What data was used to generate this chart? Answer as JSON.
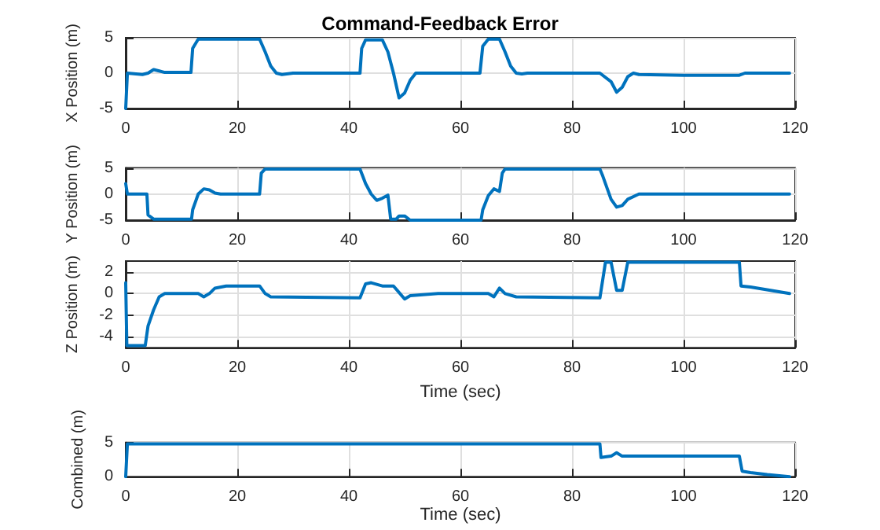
{
  "chart_data": [
    {
      "type": "line",
      "title": "Command-Feedback Error",
      "ylabel": "X Position (m)",
      "xlim": [
        0,
        120
      ],
      "xticks": [
        0,
        20,
        40,
        60,
        80,
        100,
        120
      ],
      "ylim": [
        -5,
        5
      ],
      "yticks": [
        -5,
        0,
        5
      ],
      "grid": true,
      "color": "#0072bd",
      "x": [
        0,
        0.3,
        3,
        4,
        5,
        6,
        7,
        11.7,
        12,
        13,
        24,
        25,
        26,
        27,
        28,
        30,
        42,
        42.3,
        43,
        46,
        47,
        48,
        49,
        50,
        51,
        52,
        63.5,
        64,
        65,
        67,
        68,
        69,
        70,
        71,
        72,
        85,
        87,
        88,
        89,
        90,
        91,
        92,
        100,
        110,
        111,
        119
      ],
      "values": [
        -5,
        0,
        -0.2,
        0,
        0.5,
        0.3,
        0.1,
        0.1,
        3.5,
        4.8,
        4.8,
        3,
        1,
        0,
        -0.2,
        0,
        0,
        3.5,
        4.7,
        4.7,
        3,
        0,
        -3.5,
        -2.8,
        -1,
        0,
        0,
        3.8,
        4.8,
        4.8,
        3,
        1,
        0,
        -0.1,
        0,
        0,
        -1.2,
        -2.7,
        -2,
        -0.5,
        0,
        -0.2,
        -0.3,
        -0.3,
        0,
        0
      ]
    },
    {
      "type": "line",
      "ylabel": "Y Position (m)",
      "xlim": [
        0,
        120
      ],
      "xticks": [
        0,
        20,
        40,
        60,
        80,
        100,
        120
      ],
      "ylim": [
        -5,
        5
      ],
      "yticks": [
        -5,
        0,
        5
      ],
      "grid": true,
      "color": "#0072bd",
      "x": [
        0,
        0.3,
        3.8,
        4,
        5,
        11.8,
        12,
        13,
        14,
        15,
        16,
        17,
        24,
        24.3,
        25,
        42,
        43,
        44,
        45,
        46,
        47,
        47.5,
        48.5,
        49,
        50,
        51,
        63.7,
        64,
        65,
        66,
        67,
        67.5,
        68,
        85,
        85.5,
        87,
        88,
        89,
        90,
        92,
        119
      ],
      "values": [
        2,
        0,
        0,
        -4,
        -4.8,
        -4.8,
        -3,
        0,
        1,
        0.8,
        0.2,
        0,
        0,
        4,
        4.8,
        4.8,
        2,
        0,
        -1.2,
        -0.8,
        -0.2,
        -4.8,
        -4.8,
        -4.2,
        -4.2,
        -5,
        -5,
        -3,
        -0.3,
        1,
        0.5,
        4,
        4.8,
        4.8,
        3.5,
        -1,
        -2.5,
        -2.2,
        -1,
        0,
        0
      ]
    },
    {
      "type": "line",
      "ylabel": "Z Position (m)",
      "xlabel": "Time (sec)",
      "xlim": [
        0,
        120
      ],
      "xticks": [
        0,
        20,
        40,
        60,
        80,
        100,
        120
      ],
      "ylim": [
        -5,
        3
      ],
      "yticks": [
        -4,
        -2,
        0,
        2
      ],
      "grid": true,
      "color": "#0072bd",
      "x": [
        0,
        0.2,
        3.5,
        4,
        5,
        6,
        7,
        13,
        14,
        15,
        16,
        18,
        24,
        25,
        26,
        42,
        43,
        44,
        46,
        48,
        50,
        51,
        56,
        65,
        66,
        67,
        68,
        70,
        85,
        86,
        87,
        88,
        89,
        90,
        110,
        110.3,
        112,
        119
      ],
      "values": [
        1,
        -4.8,
        -4.8,
        -3,
        -1.5,
        -0.3,
        0,
        0,
        -0.3,
        0,
        0.5,
        0.7,
        0.7,
        0,
        -0.3,
        -0.4,
        0.9,
        1,
        0.7,
        0.7,
        -0.5,
        -0.2,
        0,
        0,
        -0.3,
        0.5,
        0,
        -0.3,
        -0.4,
        2.9,
        2.9,
        0.3,
        0.3,
        2.9,
        2.9,
        0.7,
        0.6,
        0
      ]
    },
    {
      "type": "line",
      "ylabel": "Combined (m)",
      "xlabel": "Time (sec)",
      "xlim": [
        0,
        120
      ],
      "xticks": [
        0,
        20,
        40,
        60,
        80,
        100,
        120
      ],
      "ylim": [
        0,
        5
      ],
      "yticks": [
        0,
        5
      ],
      "grid": true,
      "color": "#0072bd",
      "x": [
        0,
        0.3,
        85,
        85.2,
        87,
        88,
        89,
        110,
        110.5,
        112,
        115,
        119
      ],
      "values": [
        0,
        4.8,
        4.8,
        2.8,
        3,
        3.5,
        3,
        3,
        0.8,
        0.6,
        0.3,
        0
      ]
    }
  ]
}
